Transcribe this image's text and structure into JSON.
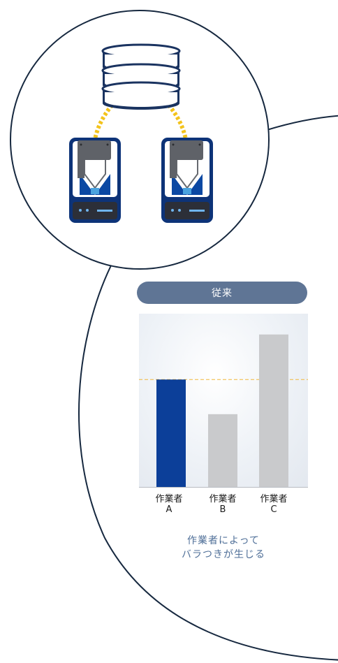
{
  "colors": {
    "outline": "#16283f",
    "navy": "#0d3378",
    "blue": "#0b48a3",
    "cyan": "#4aa3df",
    "db_fill": "#1a3360",
    "cable": "#f3c31b",
    "pill": "#5f7595",
    "caption": "#4f6f98",
    "reference_line": "#f1b83c",
    "bar_highlight": "#0c3f99",
    "bar_default": "#c9cacc"
  },
  "icons": [
    "database-icon",
    "gripper-device-icon"
  ],
  "header": {
    "label": "従来"
  },
  "chart_data": {
    "type": "bar",
    "title": "",
    "xlabel": "",
    "ylabel": "",
    "ylim": [
      0,
      100
    ],
    "reference_line": 62,
    "highlight_index": 0,
    "categories": [
      {
        "name": "作業者",
        "letter": "A"
      },
      {
        "name": "作業者",
        "letter": "B"
      },
      {
        "name": "作業者",
        "letter": "C"
      }
    ],
    "values": [
      62,
      42,
      88
    ]
  },
  "caption": {
    "line1": "作業者によって",
    "line2": "バラつきが生じる"
  }
}
